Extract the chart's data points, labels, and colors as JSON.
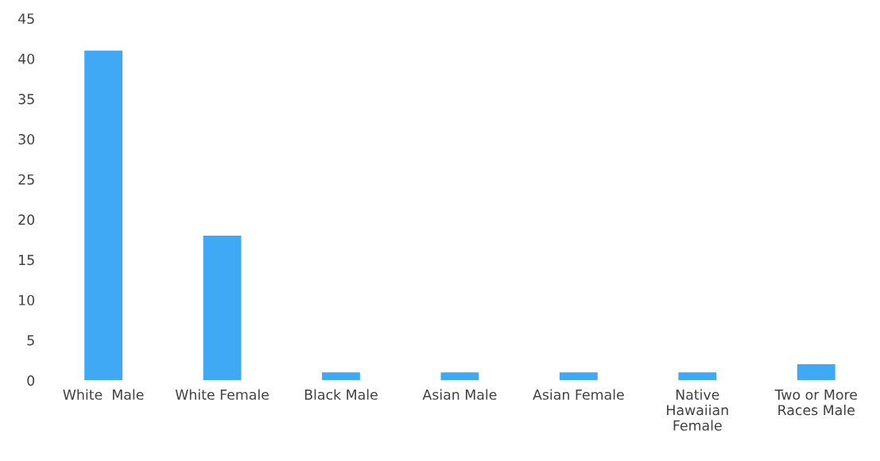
{
  "chart_data": {
    "type": "bar",
    "categories": [
      "White  Male",
      "White Female",
      "Black Male",
      "Asian Male",
      "Asian Female",
      "Native\nHawaiian\nFemale",
      "Two or More\nRaces Male"
    ],
    "values": [
      41,
      18,
      1,
      1,
      1,
      1,
      2
    ],
    "color": "#3fa9f5",
    "ylim": [
      0,
      45
    ],
    "yticks": [
      0,
      5,
      10,
      15,
      20,
      25,
      30,
      35,
      40,
      45
    ],
    "grid": false,
    "legend": false
  }
}
